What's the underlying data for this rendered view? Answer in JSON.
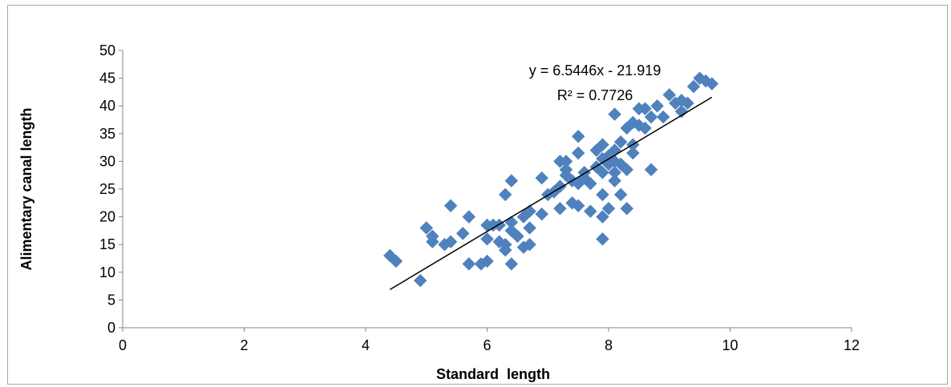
{
  "chart_data": {
    "type": "scatter",
    "title": "",
    "xlabel": "Standard  length",
    "ylabel": "Alimentary canal length",
    "xlim": [
      0,
      12
    ],
    "ylim": [
      0,
      50
    ],
    "xticks": [
      "0",
      "2",
      "4",
      "6",
      "8",
      "10",
      "12"
    ],
    "yticks": [
      "0",
      "5",
      "10",
      "15",
      "20",
      "25",
      "30",
      "35",
      "40",
      "45",
      "50"
    ],
    "grid": false,
    "legend": "none",
    "marker_color": "#4f81bd",
    "trendline": {
      "equation": "y = 6.5446x - 21.919",
      "r_squared": "R² = 0.7726",
      "slope": 6.5446,
      "intercept": -21.919,
      "x_range": [
        4.4,
        9.7
      ],
      "color": "#000000"
    },
    "series": [
      {
        "points": [
          [
            4.4,
            13.0
          ],
          [
            4.5,
            12.0
          ],
          [
            4.9,
            8.5
          ],
          [
            5.0,
            18.0
          ],
          [
            5.1,
            15.5
          ],
          [
            5.1,
            16.5
          ],
          [
            5.3,
            15.0
          ],
          [
            5.4,
            22.0
          ],
          [
            5.4,
            15.5
          ],
          [
            5.6,
            17.0
          ],
          [
            5.7,
            20.0
          ],
          [
            5.7,
            11.5
          ],
          [
            5.9,
            11.5
          ],
          [
            6.0,
            18.5
          ],
          [
            6.0,
            16.0
          ],
          [
            6.0,
            12.0
          ],
          [
            6.1,
            18.5
          ],
          [
            6.2,
            15.5
          ],
          [
            6.2,
            18.5
          ],
          [
            6.3,
            24.0
          ],
          [
            6.3,
            14.0
          ],
          [
            6.3,
            15.0
          ],
          [
            6.4,
            26.5
          ],
          [
            6.4,
            19.0
          ],
          [
            6.4,
            17.5
          ],
          [
            6.4,
            11.5
          ],
          [
            6.5,
            16.5
          ],
          [
            6.6,
            14.5
          ],
          [
            6.6,
            20.0
          ],
          [
            6.7,
            21.0
          ],
          [
            6.7,
            18.0
          ],
          [
            6.7,
            15.0
          ],
          [
            6.9,
            27.0
          ],
          [
            6.9,
            20.5
          ],
          [
            7.0,
            24.0
          ],
          [
            7.1,
            24.5
          ],
          [
            7.2,
            30.0
          ],
          [
            7.2,
            25.5
          ],
          [
            7.2,
            21.5
          ],
          [
            7.3,
            30.0
          ],
          [
            7.3,
            27.5
          ],
          [
            7.3,
            28.5
          ],
          [
            7.4,
            26.5
          ],
          [
            7.4,
            22.5
          ],
          [
            7.5,
            34.5
          ],
          [
            7.5,
            31.5
          ],
          [
            7.5,
            26.0
          ],
          [
            7.5,
            22.0
          ],
          [
            7.6,
            28.0
          ],
          [
            7.6,
            27.0
          ],
          [
            7.7,
            26.0
          ],
          [
            7.7,
            21.0
          ],
          [
            7.8,
            32.0
          ],
          [
            7.8,
            29.0
          ],
          [
            7.9,
            33.0
          ],
          [
            7.9,
            30.5
          ],
          [
            7.9,
            28.0
          ],
          [
            7.9,
            24.0
          ],
          [
            7.9,
            20.0
          ],
          [
            7.9,
            16.0
          ],
          [
            8.0,
            31.0
          ],
          [
            8.0,
            29.5
          ],
          [
            8.0,
            21.5
          ],
          [
            8.1,
            38.5
          ],
          [
            8.1,
            32.0
          ],
          [
            8.1,
            30.0
          ],
          [
            8.1,
            28.0
          ],
          [
            8.1,
            26.5
          ],
          [
            8.2,
            33.5
          ],
          [
            8.2,
            29.5
          ],
          [
            8.2,
            24.0
          ],
          [
            8.3,
            36.0
          ],
          [
            8.3,
            28.5
          ],
          [
            8.3,
            21.5
          ],
          [
            8.4,
            37.0
          ],
          [
            8.4,
            33.0
          ],
          [
            8.4,
            31.5
          ],
          [
            8.5,
            39.5
          ],
          [
            8.5,
            36.5
          ],
          [
            8.6,
            39.5
          ],
          [
            8.6,
            36.0
          ],
          [
            8.7,
            38.0
          ],
          [
            8.7,
            28.5
          ],
          [
            8.8,
            40.0
          ],
          [
            8.9,
            38.0
          ],
          [
            9.0,
            42.0
          ],
          [
            9.1,
            40.5
          ],
          [
            9.2,
            39.0
          ],
          [
            9.2,
            41.0
          ],
          [
            9.3,
            40.5
          ],
          [
            9.4,
            43.5
          ],
          [
            9.5,
            45.0
          ],
          [
            9.6,
            44.5
          ],
          [
            9.7,
            44.0
          ]
        ]
      }
    ]
  }
}
